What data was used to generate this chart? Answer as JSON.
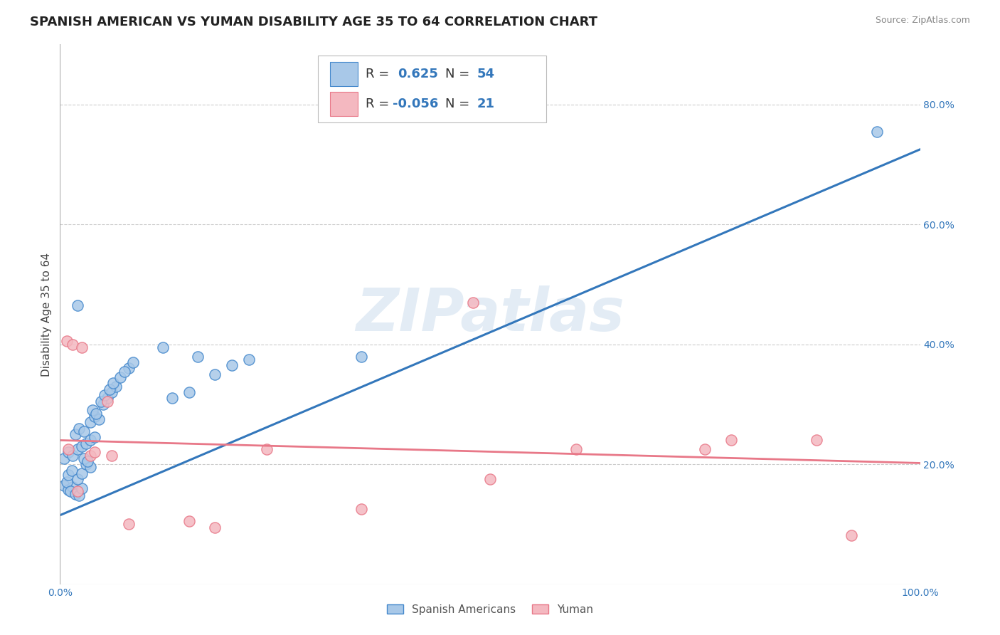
{
  "title": "SPANISH AMERICAN VS YUMAN DISABILITY AGE 35 TO 64 CORRELATION CHART",
  "source": "Source: ZipAtlas.com",
  "ylabel": "Disability Age 35 to 64",
  "xlim": [
    0,
    1.0
  ],
  "ylim": [
    0,
    0.9
  ],
  "xticks": [
    0.0,
    0.1,
    0.2,
    0.3,
    0.4,
    0.5,
    0.6,
    0.7,
    0.8,
    0.9,
    1.0
  ],
  "xticklabels": [
    "0.0%",
    "",
    "",
    "",
    "",
    "",
    "",
    "",
    "",
    "",
    "100.0%"
  ],
  "ytick_positions": [
    0.2,
    0.4,
    0.6,
    0.8
  ],
  "yticklabels": [
    "20.0%",
    "40.0%",
    "60.0%",
    "80.0%"
  ],
  "blue_R": 0.625,
  "blue_N": 54,
  "pink_R": -0.056,
  "pink_N": 21,
  "blue_color": "#a8c8e8",
  "pink_color": "#f4b8c0",
  "blue_edge_color": "#4488cc",
  "pink_edge_color": "#e87888",
  "blue_line_color": "#3377bb",
  "pink_line_color": "#e87888",
  "watermark": "ZIPatlas",
  "blue_scatter_x": [
    0.005,
    0.01,
    0.015,
    0.008,
    0.012,
    0.018,
    0.022,
    0.025,
    0.01,
    0.014,
    0.02,
    0.025,
    0.03,
    0.035,
    0.028,
    0.032,
    0.018,
    0.022,
    0.028,
    0.035,
    0.04,
    0.045,
    0.038,
    0.042,
    0.05,
    0.055,
    0.048,
    0.052,
    0.06,
    0.065,
    0.058,
    0.062,
    0.005,
    0.01,
    0.015,
    0.02,
    0.025,
    0.03,
    0.035,
    0.04,
    0.07,
    0.08,
    0.075,
    0.085,
    0.13,
    0.15,
    0.16,
    0.2,
    0.22,
    0.12,
    0.35,
    0.18,
    0.95,
    0.02
  ],
  "blue_scatter_y": [
    0.165,
    0.158,
    0.162,
    0.17,
    0.155,
    0.15,
    0.148,
    0.16,
    0.182,
    0.19,
    0.175,
    0.185,
    0.2,
    0.195,
    0.21,
    0.205,
    0.25,
    0.26,
    0.255,
    0.27,
    0.28,
    0.275,
    0.29,
    0.285,
    0.3,
    0.31,
    0.305,
    0.315,
    0.32,
    0.33,
    0.325,
    0.335,
    0.21,
    0.22,
    0.215,
    0.225,
    0.23,
    0.235,
    0.24,
    0.245,
    0.345,
    0.36,
    0.355,
    0.37,
    0.31,
    0.32,
    0.38,
    0.365,
    0.375,
    0.395,
    0.38,
    0.35,
    0.755,
    0.465
  ],
  "pink_scatter_x": [
    0.008,
    0.015,
    0.025,
    0.01,
    0.035,
    0.04,
    0.055,
    0.08,
    0.02,
    0.15,
    0.18,
    0.35,
    0.5,
    0.48,
    0.6,
    0.75,
    0.78,
    0.88,
    0.92,
    0.24,
    0.06
  ],
  "pink_scatter_y": [
    0.405,
    0.4,
    0.395,
    0.225,
    0.215,
    0.22,
    0.305,
    0.1,
    0.155,
    0.105,
    0.095,
    0.125,
    0.175,
    0.47,
    0.225,
    0.225,
    0.24,
    0.24,
    0.082,
    0.225,
    0.215
  ],
  "blue_trendline_x": [
    0.0,
    1.0
  ],
  "blue_trendline_y": [
    0.115,
    0.725
  ],
  "pink_trendline_x": [
    0.0,
    1.0
  ],
  "pink_trendline_y": [
    0.24,
    0.202
  ],
  "grid_color": "#cccccc",
  "background_color": "#ffffff",
  "title_fontsize": 13,
  "axis_label_fontsize": 11,
  "tick_fontsize": 10,
  "legend_fontsize": 13
}
